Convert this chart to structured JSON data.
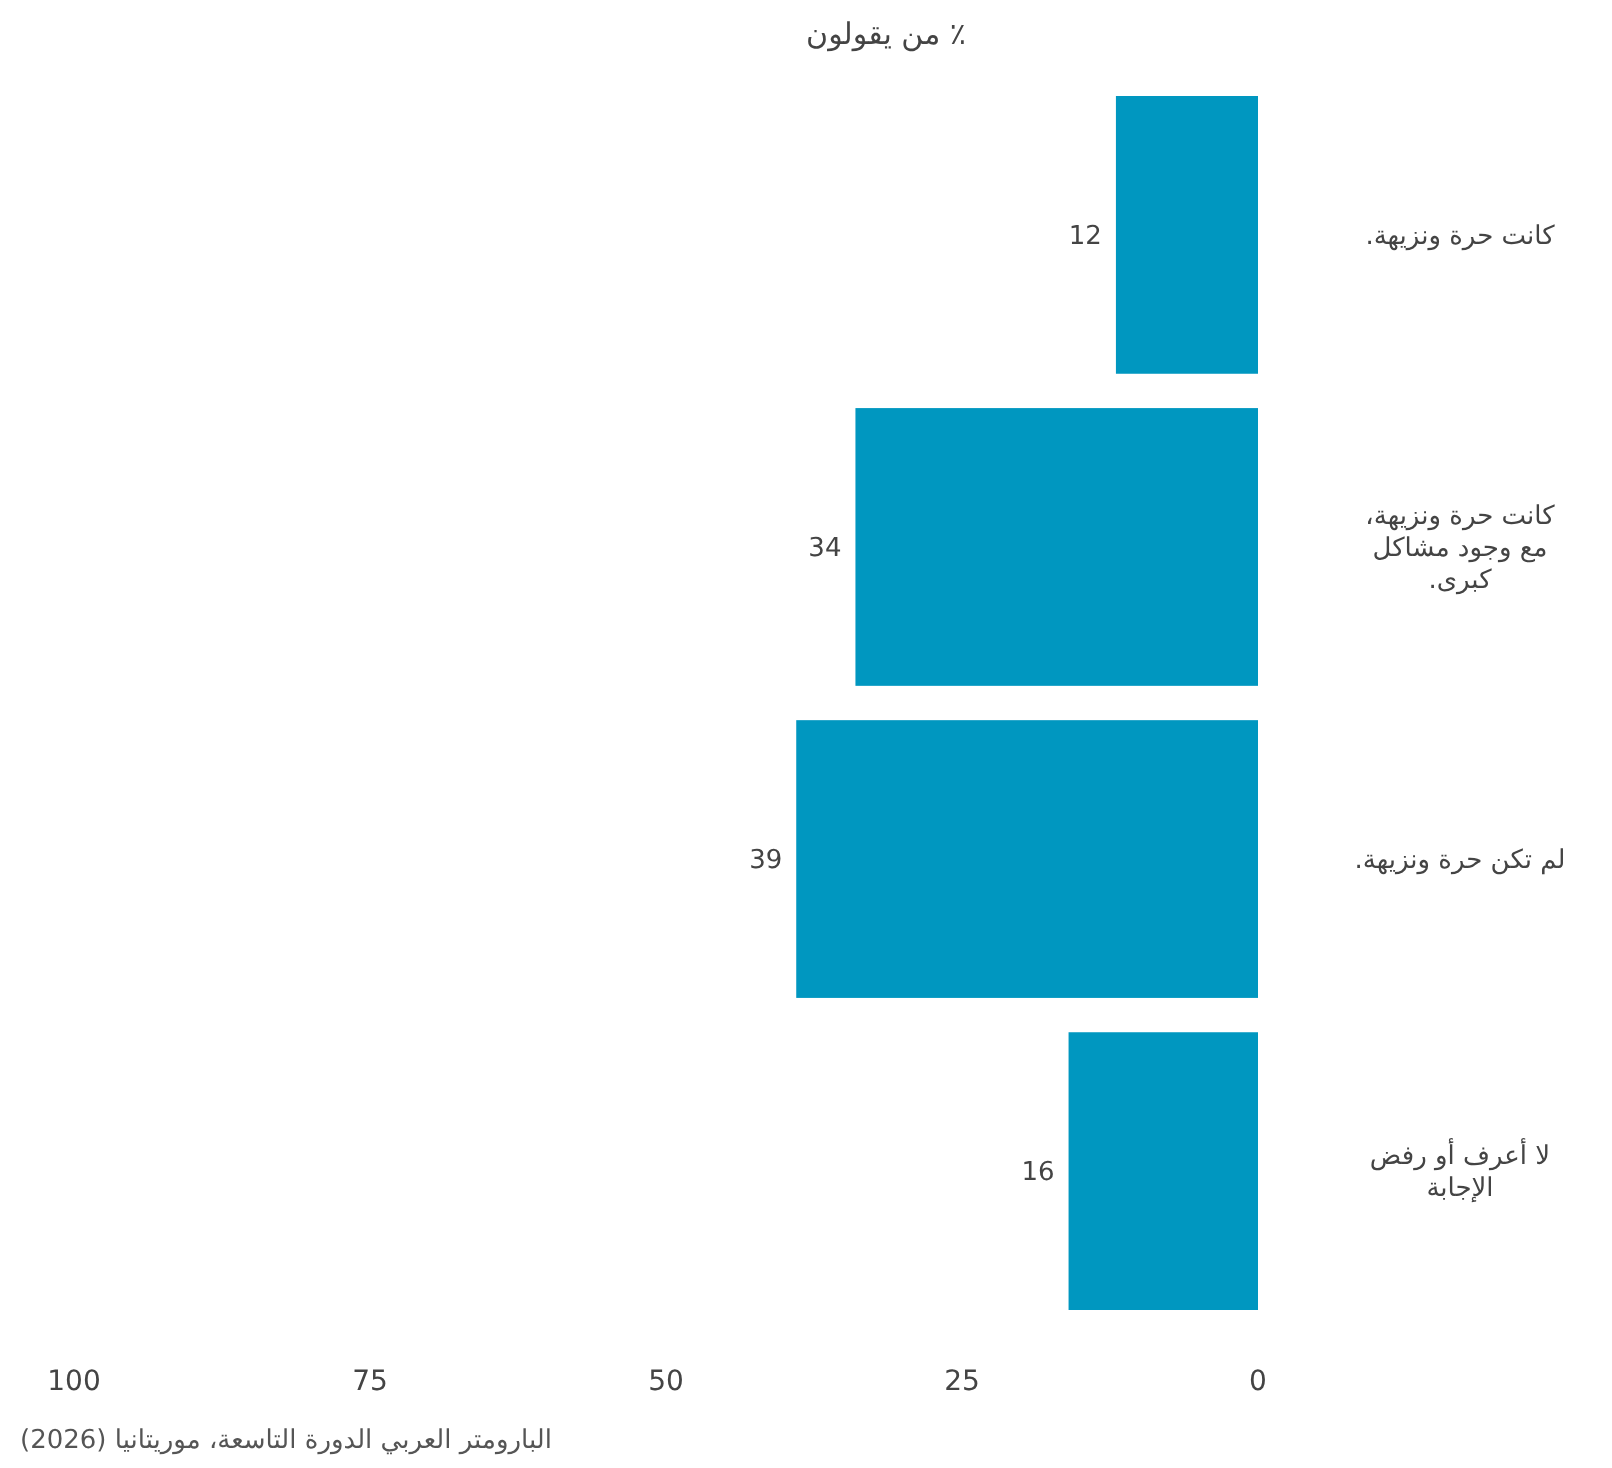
{
  "chart_data": {
    "type": "bar",
    "orientation": "horizontal",
    "title": "٪ من يقولون",
    "categories": [
      "كانت حرة ونزيهة.",
      "كانت حرة ونزيهة، مع وجود مشاكل كبرى.",
      "لم تكن حرة ونزيهة.",
      "لا أعرف أو رفض الإجابة"
    ],
    "values": [
      12,
      34,
      39,
      16
    ],
    "color": "#0097c0",
    "data_labels": true,
    "xlim": [
      100,
      0
    ],
    "xticks": [
      100,
      75,
      50,
      25,
      0
    ],
    "grid": false,
    "annotations": [
      "البارومتر العربي الدورة التاسعة، موريتانيا (2026)"
    ]
  }
}
